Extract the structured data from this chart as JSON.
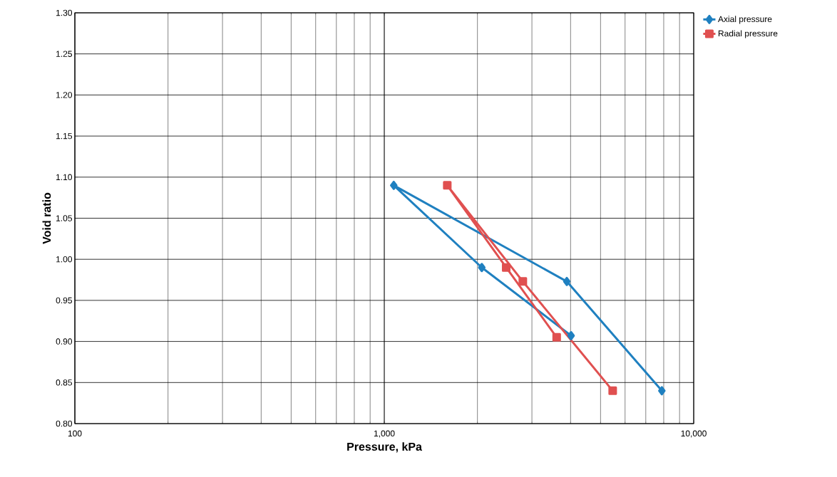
{
  "chart_data": {
    "type": "line",
    "xlabel": "Pressure, kPa",
    "ylabel": "Void ratio",
    "log": "x",
    "grid": true,
    "legend": "top right",
    "xlim": [
      100,
      10000
    ],
    "xticks": [
      100,
      {
        "value": 1000,
        "label": "1,000"
      },
      {
        "value": 10000,
        "label": "10,000"
      }
    ],
    "ylim": [
      0.8,
      1.3
    ],
    "yticks": [
      {
        "value": 0.8,
        "label": "0.80"
      },
      0.85,
      {
        "value": 0.9,
        "label": "0.90"
      },
      0.95,
      {
        "value": 1.0,
        "label": "1.00"
      },
      1.05,
      {
        "value": 1.1,
        "label": "1.10"
      },
      1.15,
      {
        "value": 1.2,
        "label": "1.20"
      },
      1.25,
      {
        "value": 1.3,
        "label": "1.30"
      }
    ],
    "series": [
      {
        "name": "Axial pressure",
        "color": "#1f80c0",
        "marker": "diamond",
        "x": [
          4015,
          2066,
          1073,
          3890,
          7890
        ],
        "values": [
          0.907,
          0.99,
          1.09,
          0.973,
          0.84
        ]
      },
      {
        "name": "Radial pressure",
        "color": "#e05050",
        "marker": "square",
        "x": [
          3607,
          2477,
          1598,
          2804,
          5472
        ],
        "values": [
          0.905,
          0.99,
          1.09,
          0.973,
          0.84
        ]
      }
    ]
  }
}
